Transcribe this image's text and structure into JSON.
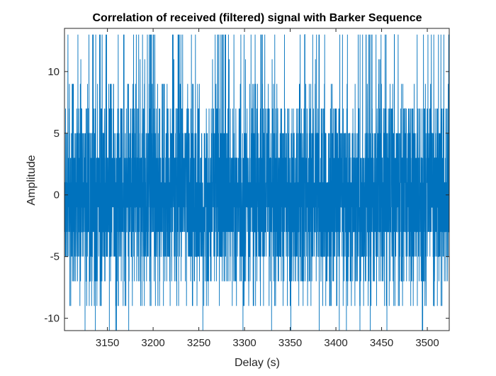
{
  "chart_data": {
    "type": "line",
    "title": "Correlation of received (filtered) signal with Barker Sequence",
    "xlabel": "Delay (s)",
    "ylabel": "Amplitude",
    "xlim": [
      3103,
      3524
    ],
    "ylim": [
      -11,
      13.5
    ],
    "xticks": [
      3150,
      3200,
      3250,
      3300,
      3350,
      3400,
      3450,
      3500
    ],
    "yticks": [
      -10,
      -5,
      0,
      5,
      10
    ],
    "xtick_labels": [
      "3150",
      "3200",
      "3250",
      "3300",
      "3350",
      "3400",
      "3450",
      "3500"
    ],
    "ytick_labels": [
      "-10",
      "-5",
      "0",
      "5",
      "10"
    ],
    "grid": false,
    "legend": "none",
    "line_color": "#0072BD",
    "axes_color": "#262626",
    "x_start": 3103,
    "x_step": 0.1,
    "y_levels": [
      -11,
      -9,
      -7,
      -5,
      -3,
      -1,
      1,
      3,
      5,
      7,
      9,
      11,
      13
    ],
    "y_level_weights": [
      0.004,
      0.02,
      0.05,
      0.09,
      0.15,
      0.19,
      0.19,
      0.15,
      0.09,
      0.05,
      0.02,
      0.004,
      0.02
    ]
  }
}
